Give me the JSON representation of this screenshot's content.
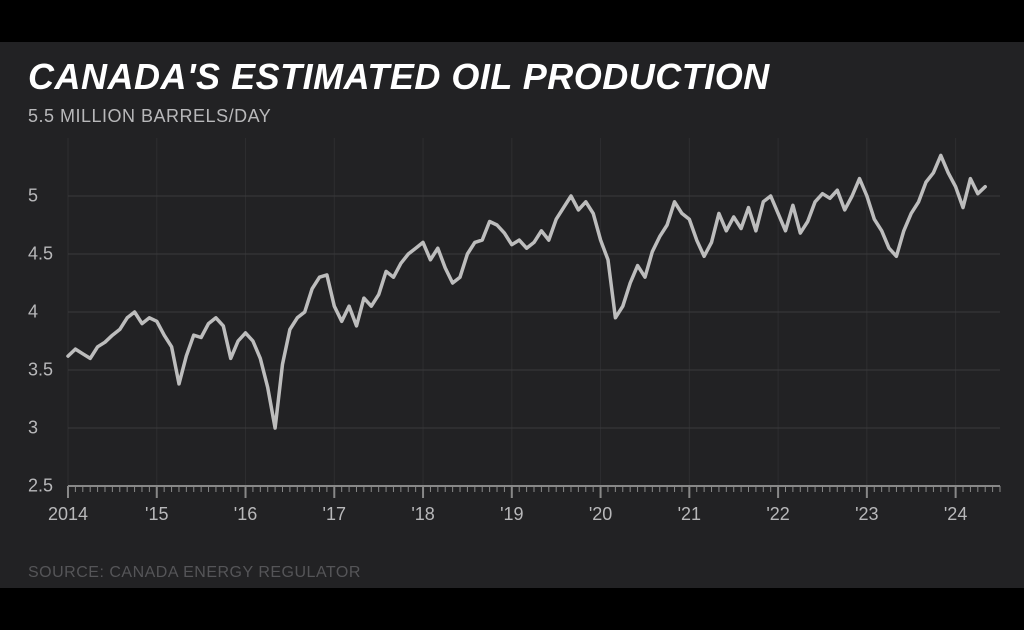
{
  "chart": {
    "type": "line",
    "title": "CANADA'S ESTIMATED OIL PRODUCTION",
    "unit_label": "5.5 MILLION BARRELS/DAY",
    "source": "SOURCE: CANADA ENERGY REGULATOR",
    "background_color": "#222224",
    "outer_background": "#000000",
    "title_color": "#ffffff",
    "label_color": "#b8b8ba",
    "source_color": "#555558",
    "grid_color_major": "#3a3a3c",
    "grid_color_minor": "#2e2e30",
    "axis_color": "#888888",
    "line_color": "#bdbdbd",
    "line_width": 3.5,
    "title_fontsize": 36,
    "label_fontsize": 18,
    "xlim": [
      2014,
      2024.5
    ],
    "ylim": [
      2.5,
      5.5
    ],
    "ytick_step": 0.5,
    "y_ticks": [
      2.5,
      3,
      3.5,
      4,
      4.5,
      5,
      5.5
    ],
    "y_tick_labels": [
      "2.5",
      "3",
      "3.5",
      "4",
      "4.5",
      "5",
      "5.5"
    ],
    "y_tick_show_line": [
      true,
      true,
      true,
      true,
      true,
      true,
      false
    ],
    "x_major_ticks": [
      2014,
      2015,
      2016,
      2017,
      2018,
      2019,
      2020,
      2021,
      2022,
      2023,
      2024
    ],
    "x_tick_labels": [
      "2014",
      "'15",
      "'16",
      "'17",
      "'18",
      "'19",
      "'20",
      "'21",
      "'22",
      "'23",
      "'24"
    ],
    "x_minor_interval": 0.0833333,
    "plot_margin_left": 40,
    "values": [
      3.62,
      3.68,
      3.64,
      3.6,
      3.7,
      3.74,
      3.8,
      3.85,
      3.95,
      4.0,
      3.9,
      3.95,
      3.92,
      3.8,
      3.7,
      3.38,
      3.62,
      3.8,
      3.78,
      3.9,
      3.95,
      3.88,
      3.6,
      3.75,
      3.82,
      3.75,
      3.6,
      3.35,
      3.0,
      3.55,
      3.85,
      3.95,
      4.0,
      4.2,
      4.3,
      4.32,
      4.05,
      3.92,
      4.05,
      3.88,
      4.12,
      4.05,
      4.15,
      4.35,
      4.3,
      4.42,
      4.5,
      4.55,
      4.6,
      4.45,
      4.55,
      4.38,
      4.25,
      4.3,
      4.5,
      4.6,
      4.62,
      4.78,
      4.75,
      4.68,
      4.58,
      4.62,
      4.55,
      4.6,
      4.7,
      4.62,
      4.8,
      4.9,
      5.0,
      4.88,
      4.95,
      4.85,
      4.62,
      4.45,
      3.95,
      4.05,
      4.25,
      4.4,
      4.3,
      4.52,
      4.65,
      4.75,
      4.95,
      4.85,
      4.8,
      4.62,
      4.48,
      4.6,
      4.85,
      4.7,
      4.82,
      4.72,
      4.9,
      4.7,
      4.95,
      5.0,
      4.85,
      4.7,
      4.92,
      4.68,
      4.78,
      4.95,
      5.02,
      4.98,
      5.05,
      4.88,
      5.0,
      5.15,
      5.0,
      4.8,
      4.7,
      4.55,
      4.48,
      4.7,
      4.85,
      4.95,
      5.12,
      5.2,
      5.35,
      5.2,
      5.08,
      4.9,
      5.15,
      5.02,
      5.08
    ]
  }
}
